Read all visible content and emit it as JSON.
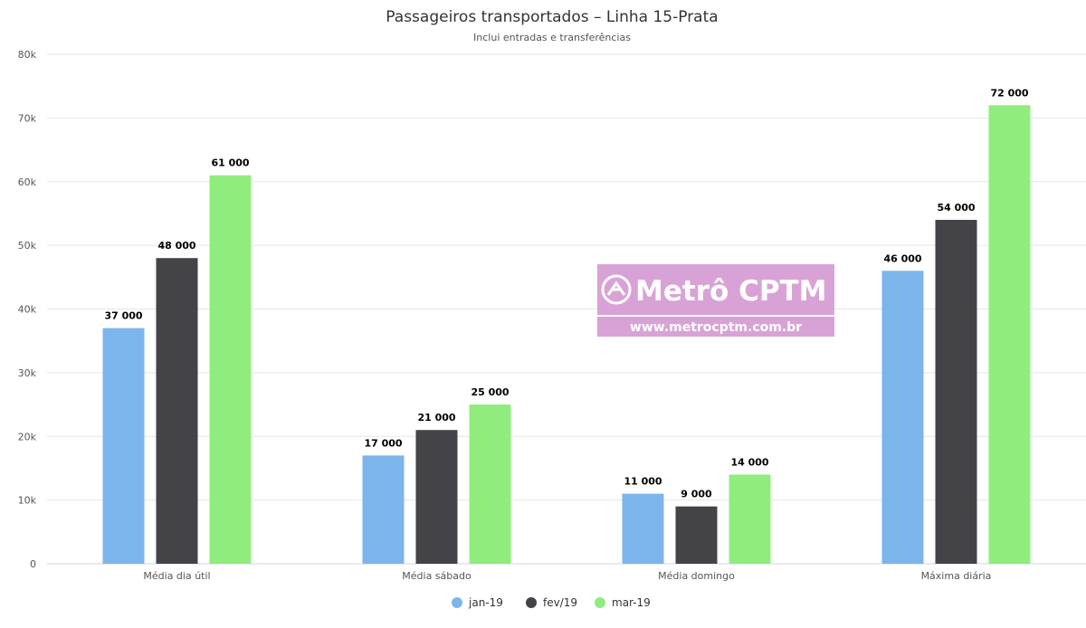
{
  "chart_data": {
    "type": "bar",
    "title": "Passageiros transportados – Linha 15-Prata",
    "subtitle": "Inclui entradas e transferências",
    "categories": [
      "Média dia útil",
      "Média sábado",
      "Média domingo",
      "Máxima diária"
    ],
    "series": [
      {
        "name": "jan-19",
        "color": "#7cb5ec",
        "values": [
          37000,
          17000,
          11000,
          46000
        ],
        "labels": [
          "37 000",
          "17 000",
          "11 000",
          "46 000"
        ]
      },
      {
        "name": "fev/19",
        "color": "#434348",
        "values": [
          48000,
          21000,
          9000,
          54000
        ],
        "labels": [
          "48 000",
          "21 000",
          "9 000",
          "54 000"
        ]
      },
      {
        "name": "mar-19",
        "color": "#90ed7d",
        "values": [
          61000,
          25000,
          14000,
          72000
        ],
        "labels": [
          "61 000",
          "25 000",
          "14 000",
          "72 000"
        ]
      }
    ],
    "ylim": [
      0,
      80000
    ],
    "yticks": [
      0,
      10000,
      20000,
      30000,
      40000,
      50000,
      60000,
      70000,
      80000
    ],
    "ytick_labels": [
      "0",
      "10k",
      "20k",
      "30k",
      "40k",
      "50k",
      "60k",
      "70k",
      "80k"
    ],
    "grid": true,
    "legend_position": "bottom-center"
  },
  "watermark": {
    "title": "Metrô CPTM",
    "url": "www.metrocptm.com.br",
    "color": "#d9a2d6",
    "icon": "metro-cptm-logo-icon"
  }
}
